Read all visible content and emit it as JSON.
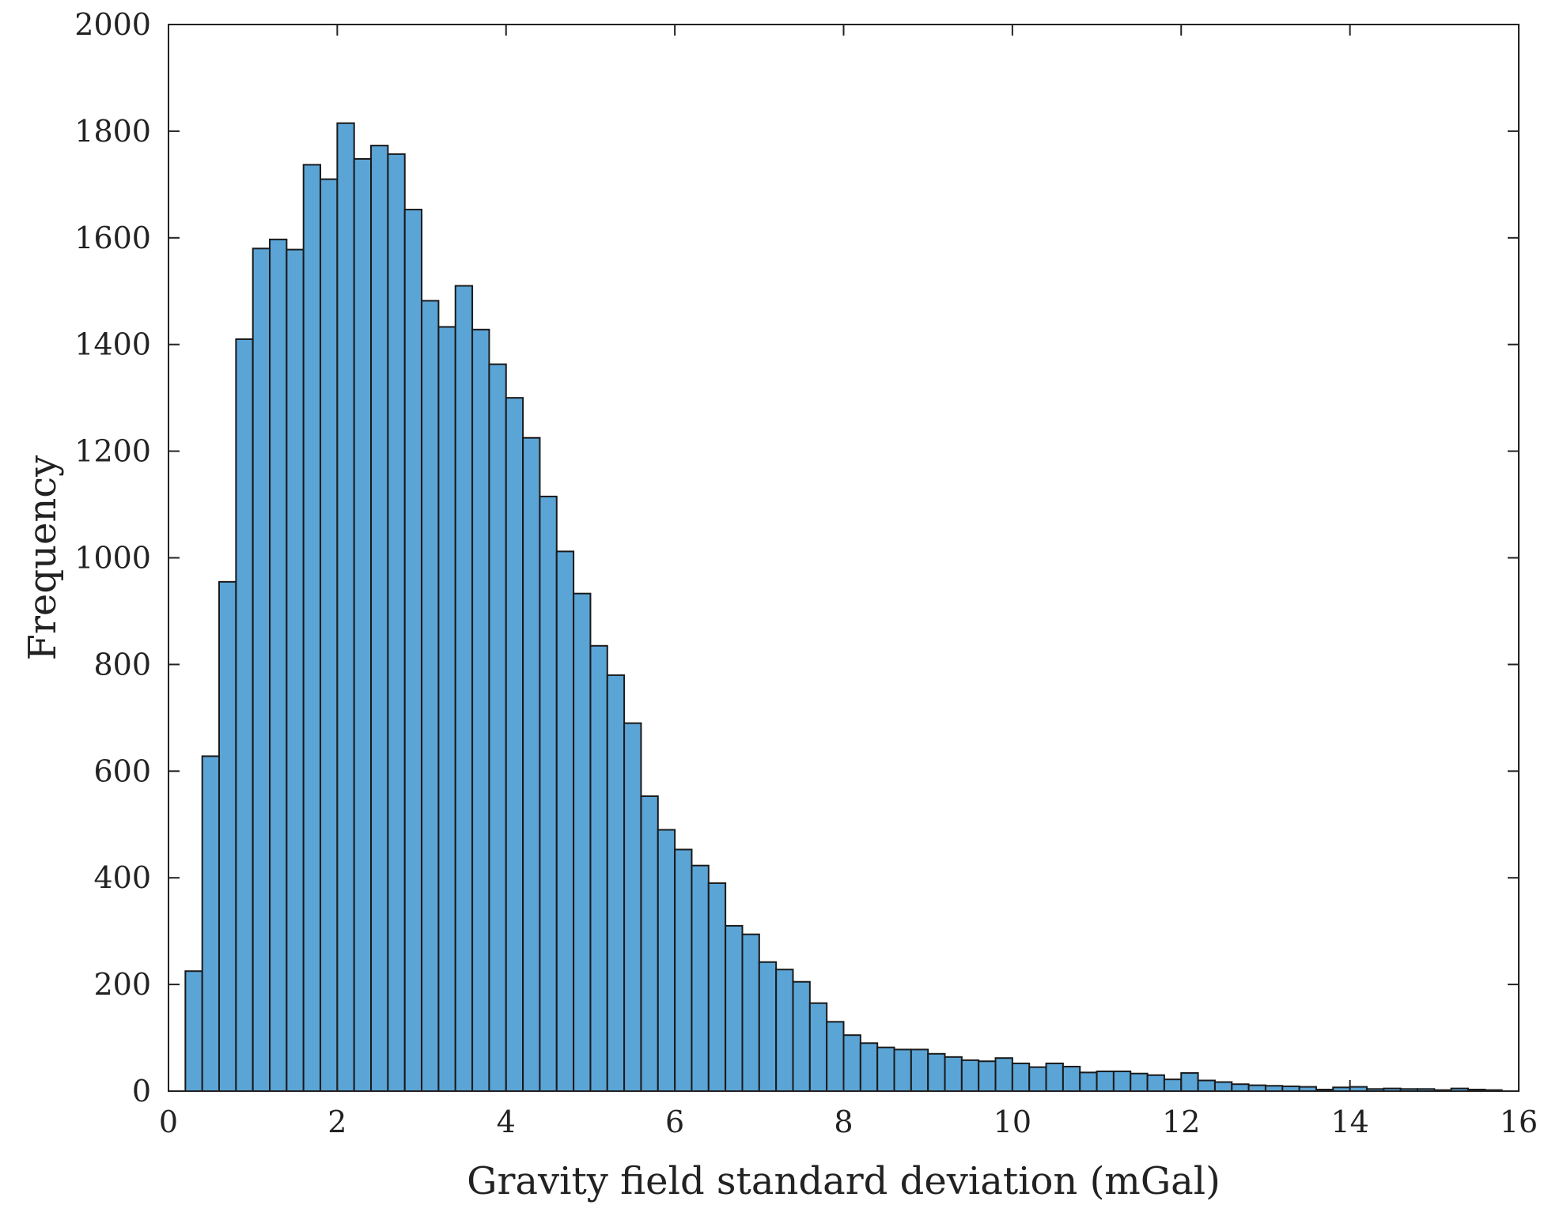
{
  "chart_data": {
    "type": "bar",
    "xlabel": "Gravity field standard deviation (mGal)",
    "ylabel": "Frequency",
    "xlim": [
      0,
      16
    ],
    "ylim": [
      0,
      2000
    ],
    "xticks": [
      0,
      2,
      4,
      6,
      8,
      10,
      12,
      14,
      16
    ],
    "yticks": [
      0,
      200,
      400,
      600,
      800,
      1000,
      1200,
      1400,
      1600,
      1800,
      2000
    ],
    "grid": false,
    "bin_start": 0.2,
    "bin_width": 0.2,
    "colors": {
      "bar_fill": "#5ba4d6",
      "bar_edge": "#1a1a1a"
    },
    "values": [
      225,
      628,
      955,
      1410,
      1580,
      1597,
      1578,
      1737,
      1710,
      1815,
      1748,
      1773,
      1757,
      1653,
      1482,
      1433,
      1510,
      1428,
      1363,
      1300,
      1225,
      1115,
      1012,
      933,
      835,
      780,
      690,
      553,
      490,
      453,
      423,
      390,
      310,
      294,
      242,
      228,
      205,
      165,
      130,
      105,
      90,
      82,
      78,
      78,
      70,
      64,
      58,
      56,
      62,
      52,
      45,
      52,
      46,
      35,
      37,
      37,
      33,
      30,
      22,
      34,
      20,
      17,
      13,
      11,
      10,
      9,
      8,
      3,
      7,
      8,
      4,
      5,
      4,
      4,
      2,
      5,
      3,
      2
    ]
  }
}
